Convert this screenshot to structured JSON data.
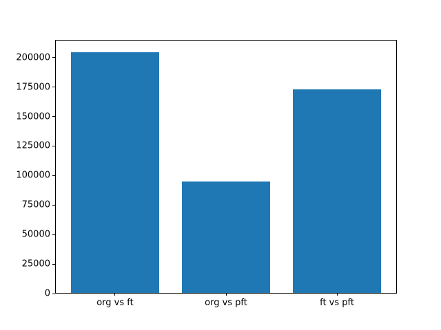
{
  "chart_data": {
    "type": "bar",
    "categories": [
      "org vs ft",
      "org vs pft",
      "ft vs pft"
    ],
    "values": [
      204500,
      94700,
      173200
    ],
    "yticks": [
      0,
      25000,
      50000,
      75000,
      100000,
      125000,
      150000,
      175000,
      200000
    ],
    "ytick_labels": [
      "0",
      "25000",
      "50000",
      "75000",
      "100000",
      "125000",
      "150000",
      "175000",
      "200000"
    ],
    "ylim": [
      0,
      215000
    ],
    "bar_width": 0.8,
    "bar_color": "#1f77b4",
    "spine_color": "#000000",
    "background_color": "#ffffff",
    "grid": false,
    "legend": null
  }
}
